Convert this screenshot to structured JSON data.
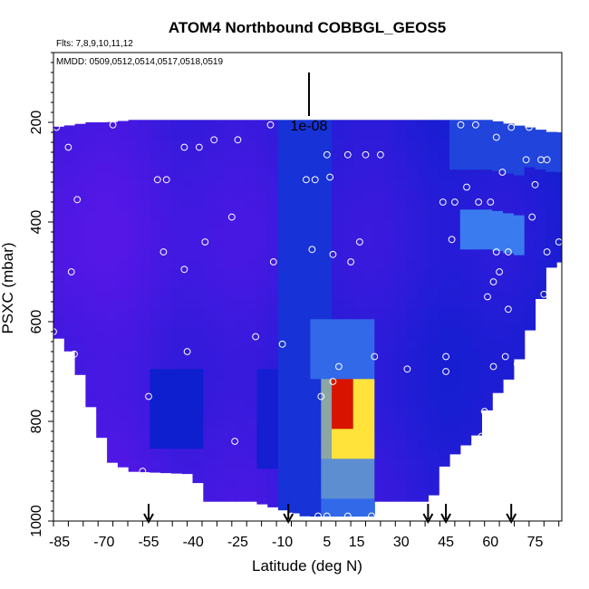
{
  "chart_data": {
    "type": "heatmap",
    "title": "ATOM4 Northbound COBBGL_GEOS5",
    "flights_note": "Flts: 7,8,9,10,11,12",
    "dates_note": "MMDD: 0509,0512,0514,0517,0518,0519",
    "xlabel": "Latitude (deg N)",
    "ylabel": "PSXC (mbar)",
    "xlim": [
      -87,
      84
    ],
    "ylim": [
      1000,
      60
    ],
    "x_tick_labels": [
      "-85",
      "-70",
      "-55",
      "-40",
      "-25",
      "-10",
      "5",
      "15",
      "30",
      "45",
      "60",
      "75"
    ],
    "y_tick_labels": [
      "200",
      "400",
      "600",
      "800",
      "1000"
    ],
    "y_tick_values": [
      200,
      400,
      600,
      800,
      1000
    ],
    "scale_bar_label": "1e-08",
    "grid": false,
    "colors": {
      "background_field": "#4a1fd8",
      "low": "#5a16e8",
      "mid": "#0e1fcf",
      "enhanced": "#3a7cf0",
      "high": "#ffe23a",
      "peak": "#d81400"
    },
    "columns": [
      {
        "lat": -87,
        "top": 210,
        "bottom": 620
      },
      {
        "lat": -80,
        "top": 205,
        "bottom": 670
      },
      {
        "lat": -75,
        "top": 200,
        "bottom": 760
      },
      {
        "lat": -68,
        "top": 200,
        "bottom": 880
      },
      {
        "lat": -60,
        "top": 195,
        "bottom": 900
      },
      {
        "lat": -40,
        "top": 195,
        "bottom": 905
      },
      {
        "lat": -35,
        "top": 195,
        "bottom": 960
      },
      {
        "lat": -20,
        "top": 195,
        "bottom": 960
      },
      {
        "lat": -2,
        "top": 195,
        "bottom": 990
      },
      {
        "lat": 20,
        "top": 195,
        "bottom": 990
      },
      {
        "lat": 22,
        "top": 195,
        "bottom": 960
      },
      {
        "lat": 40,
        "top": 195,
        "bottom": 960
      },
      {
        "lat": 45,
        "top": 195,
        "bottom": 880
      },
      {
        "lat": 55,
        "top": 195,
        "bottom": 830
      },
      {
        "lat": 60,
        "top": 195,
        "bottom": 760
      },
      {
        "lat": 68,
        "top": 205,
        "bottom": 700
      },
      {
        "lat": 73,
        "top": 210,
        "bottom": 620
      },
      {
        "lat": 81,
        "top": 220,
        "bottom": 480
      },
      {
        "lat": 84,
        "top": 220,
        "bottom": 480
      }
    ],
    "features": [
      {
        "lat": [
          -10,
          7
        ],
        "psxc": [
          200,
          1000
        ],
        "level": 0.55
      },
      {
        "lat": [
          -20,
          -5
        ],
        "psxc": [
          700,
          900
        ],
        "level": 0.45
      },
      {
        "lat": [
          -55,
          -35
        ],
        "psxc": [
          700,
          860
        ],
        "level": 0.5
      },
      {
        "lat": [
          45,
          84
        ],
        "psxc": [
          200,
          300
        ],
        "level": 0.6
      },
      {
        "lat": [
          50,
          70
        ],
        "psxc": [
          380,
          460
        ],
        "level": 0.75
      },
      {
        "lat": [
          0,
          20
        ],
        "psxc": [
          600,
          720
        ],
        "level": 0.7
      },
      {
        "lat": [
          2,
          6
        ],
        "psxc": [
          720,
          870
        ],
        "level": 0.82
      },
      {
        "lat": [
          5,
          20
        ],
        "psxc": [
          720,
          870
        ],
        "level": 0.92
      },
      {
        "lat": [
          6,
          14
        ],
        "psxc": [
          720,
          820
        ],
        "level": 1.0
      },
      {
        "lat": [
          2,
          20
        ],
        "psxc": [
          870,
          960
        ],
        "level": 0.78
      },
      {
        "lat": [
          2,
          20
        ],
        "psxc": [
          960,
          990
        ],
        "level": 0.7
      }
    ],
    "sample_points": [
      {
        "lat": -86,
        "psxc": 210
      },
      {
        "lat": -82,
        "psxc": 250
      },
      {
        "lat": -79,
        "psxc": 355
      },
      {
        "lat": -81,
        "psxc": 500
      },
      {
        "lat": -87,
        "psxc": 620
      },
      {
        "lat": -80,
        "psxc": 665
      },
      {
        "lat": -80,
        "psxc": 815
      },
      {
        "lat": -57,
        "psxc": 900
      },
      {
        "lat": -55,
        "psxc": 750
      },
      {
        "lat": -67,
        "psxc": 205
      },
      {
        "lat": -52,
        "psxc": 315
      },
      {
        "lat": -49,
        "psxc": 315
      },
      {
        "lat": -50,
        "psxc": 460
      },
      {
        "lat": -43,
        "psxc": 250
      },
      {
        "lat": -38,
        "psxc": 250
      },
      {
        "lat": -33,
        "psxc": 235
      },
      {
        "lat": -36,
        "psxc": 440
      },
      {
        "lat": -43,
        "psxc": 495
      },
      {
        "lat": -42,
        "psxc": 660
      },
      {
        "lat": -27,
        "psxc": 390
      },
      {
        "lat": -25,
        "psxc": 235
      },
      {
        "lat": -14,
        "psxc": 205
      },
      {
        "lat": -13,
        "psxc": 480
      },
      {
        "lat": -19,
        "psxc": 630
      },
      {
        "lat": -10,
        "psxc": 645
      },
      {
        "lat": -26,
        "psxc": 840
      },
      {
        "lat": -2,
        "psxc": 315
      },
      {
        "lat": 1,
        "psxc": 315
      },
      {
        "lat": 0,
        "psxc": 455
      },
      {
        "lat": 5,
        "psxc": 265
      },
      {
        "lat": 6,
        "psxc": 310
      },
      {
        "lat": 7,
        "psxc": 465
      },
      {
        "lat": 12,
        "psxc": 265
      },
      {
        "lat": 18,
        "psxc": 265
      },
      {
        "lat": 16,
        "psxc": 440
      },
      {
        "lat": 13,
        "psxc": 480
      },
      {
        "lat": 23,
        "psxc": 265
      },
      {
        "lat": 21,
        "psxc": 670
      },
      {
        "lat": 9,
        "psxc": 690
      },
      {
        "lat": 7,
        "psxc": 720
      },
      {
        "lat": 3,
        "psxc": 750
      },
      {
        "lat": 32,
        "psxc": 695
      },
      {
        "lat": -7,
        "psxc": 990
      },
      {
        "lat": 2,
        "psxc": 990
      },
      {
        "lat": 5,
        "psxc": 990
      },
      {
        "lat": 12,
        "psxc": 990
      },
      {
        "lat": 20,
        "psxc": 990
      },
      {
        "lat": 44,
        "psxc": 360
      },
      {
        "lat": 47,
        "psxc": 435
      },
      {
        "lat": 48,
        "psxc": 360
      },
      {
        "lat": 50,
        "psxc": 205
      },
      {
        "lat": 52,
        "psxc": 330
      },
      {
        "lat": 55,
        "psxc": 205
      },
      {
        "lat": 56,
        "psxc": 360
      },
      {
        "lat": 60,
        "psxc": 360
      },
      {
        "lat": 59,
        "psxc": 550
      },
      {
        "lat": 61,
        "psxc": 520
      },
      {
        "lat": 62,
        "psxc": 230
      },
      {
        "lat": 62,
        "psxc": 460
      },
      {
        "lat": 63,
        "psxc": 500
      },
      {
        "lat": 64,
        "psxc": 300
      },
      {
        "lat": 65,
        "psxc": 670
      },
      {
        "lat": 67,
        "psxc": 210
      },
      {
        "lat": 66,
        "psxc": 575
      },
      {
        "lat": 66,
        "psxc": 460
      },
      {
        "lat": 69,
        "psxc": 685
      },
      {
        "lat": 72,
        "psxc": 275
      },
      {
        "lat": 73,
        "psxc": 210
      },
      {
        "lat": 74,
        "psxc": 390
      },
      {
        "lat": 75,
        "psxc": 325
      },
      {
        "lat": 77,
        "psxc": 275
      },
      {
        "lat": 79,
        "psxc": 275
      },
      {
        "lat": 79,
        "psxc": 460
      },
      {
        "lat": 77,
        "psxc": 630
      },
      {
        "lat": 78,
        "psxc": 545
      },
      {
        "lat": 83,
        "psxc": 440
      },
      {
        "lat": 45,
        "psxc": 670
      },
      {
        "lat": 45,
        "psxc": 700
      },
      {
        "lat": 58,
        "psxc": 780
      },
      {
        "lat": 57,
        "psxc": 830
      },
      {
        "lat": 61,
        "psxc": 690
      }
    ],
    "flight_markers": [
      {
        "lat": -55
      },
      {
        "lat": -8
      },
      {
        "lat": 39
      },
      {
        "lat": 45
      },
      {
        "lat": 67
      }
    ]
  }
}
